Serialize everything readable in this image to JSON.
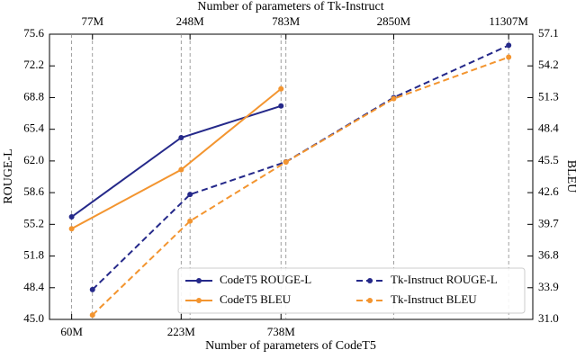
{
  "chart_data": {
    "type": "line",
    "xlabel": "Number of parameters of CodeT5",
    "x2label": "Number of parameters of Tk-Instruct",
    "ylabel": "ROUGE-L",
    "y2label": "BLEU",
    "xscale": "log",
    "xlim": [
      46,
      15100
    ],
    "xticks": [
      {
        "value": 60,
        "label": "60M"
      },
      {
        "value": 223,
        "label": "223M"
      },
      {
        "value": 738,
        "label": "738M"
      }
    ],
    "x2ticks": [
      {
        "value": 77,
        "label": "77M"
      },
      {
        "value": 248,
        "label": "248M"
      },
      {
        "value": 783,
        "label": "783M"
      },
      {
        "value": 2850,
        "label": "2850M"
      },
      {
        "value": 11307,
        "label": "11307M"
      }
    ],
    "ylim": [
      45.0,
      75.6
    ],
    "yticks": [
      {
        "value": 45.0,
        "label": "45.0"
      },
      48.4,
      51.8,
      55.2,
      58.6,
      {
        "value": 62.0,
        "label": "62.0"
      },
      65.4,
      68.8,
      72.2,
      75.6
    ],
    "y2lim": [
      31.0,
      57.1
    ],
    "y2ticks": [
      {
        "value": 31.0,
        "label": "31.0"
      },
      33.9,
      36.8,
      39.7,
      42.6,
      45.5,
      48.4,
      51.3,
      54.2,
      57.1
    ],
    "grid": "x",
    "legend": "lower right",
    "series": [
      {
        "name": "CodeT5 ROUGE-L",
        "color": "#25298a",
        "linestyle": "solid",
        "axis": "y",
        "x_axis": "x",
        "x": [
          60,
          223,
          738
        ],
        "values": [
          56.0,
          64.5,
          67.9
        ]
      },
      {
        "name": "CodeT5 BLEU",
        "color": "#f39530",
        "linestyle": "solid",
        "axis": "y2",
        "x_axis": "x",
        "x": [
          60,
          223,
          738
        ],
        "values": [
          39.3,
          44.7,
          52.1
        ]
      },
      {
        "name": "Tk-Instruct ROUGE-L",
        "color": "#25298a",
        "linestyle": "dashed",
        "axis": "y",
        "x_axis": "x2",
        "x": [
          77,
          248,
          783,
          2850,
          11307
        ],
        "values": [
          48.2,
          58.4,
          61.9,
          68.8,
          74.4
        ]
      },
      {
        "name": "Tk-Instruct BLEU",
        "color": "#f39530",
        "linestyle": "dashed",
        "axis": "y2",
        "x_axis": "x2",
        "x": [
          77,
          248,
          783,
          2850,
          11307
        ],
        "values": [
          31.4,
          40.0,
          45.4,
          51.2,
          55.0
        ]
      }
    ]
  }
}
